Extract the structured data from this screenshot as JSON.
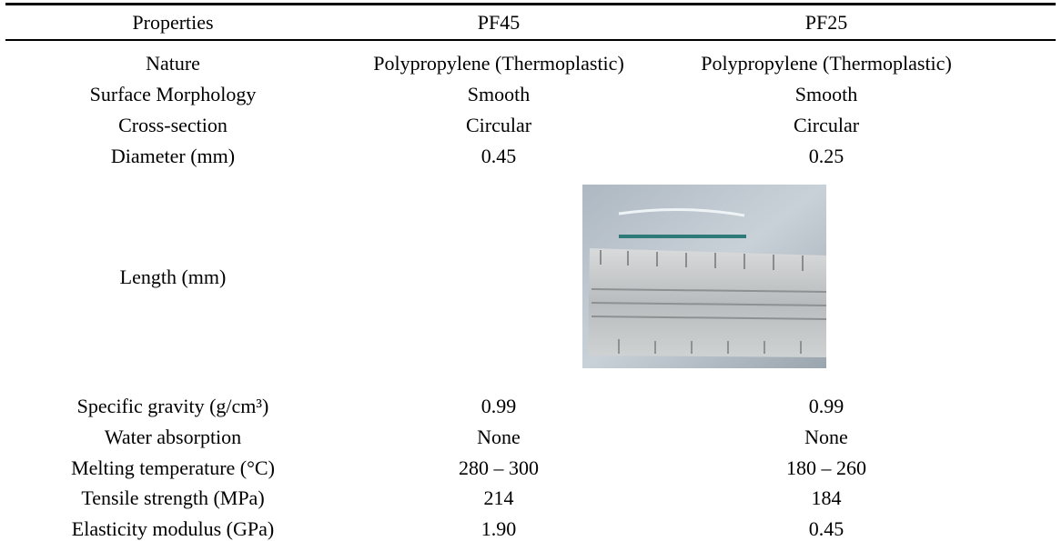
{
  "table": {
    "header": [
      "Properties",
      "PF45",
      "PF25"
    ],
    "rows": [
      [
        "Nature",
        "Polypropylene (Thermoplastic)",
        "Polypropylene (Thermoplastic)"
      ],
      [
        "Surface Morphology",
        "Smooth",
        "Smooth"
      ],
      [
        "Cross-section",
        "Circular",
        "Circular"
      ],
      [
        "Diameter (mm)",
        "0.45",
        "0.25"
      ],
      [
        "Length (mm)"
      ],
      [
        "Specific gravity (g/cm³)",
        "0.99",
        "0.99"
      ],
      [
        "Water absorption",
        "None",
        "None"
      ],
      [
        "Melting temperature (°C)",
        "280 – 300",
        "180 – 260"
      ],
      [
        "Tensile strength (MPa)",
        "214",
        "184"
      ],
      [
        "Elasticity modulus (GPa)",
        "1.90",
        "0.45"
      ]
    ]
  }
}
